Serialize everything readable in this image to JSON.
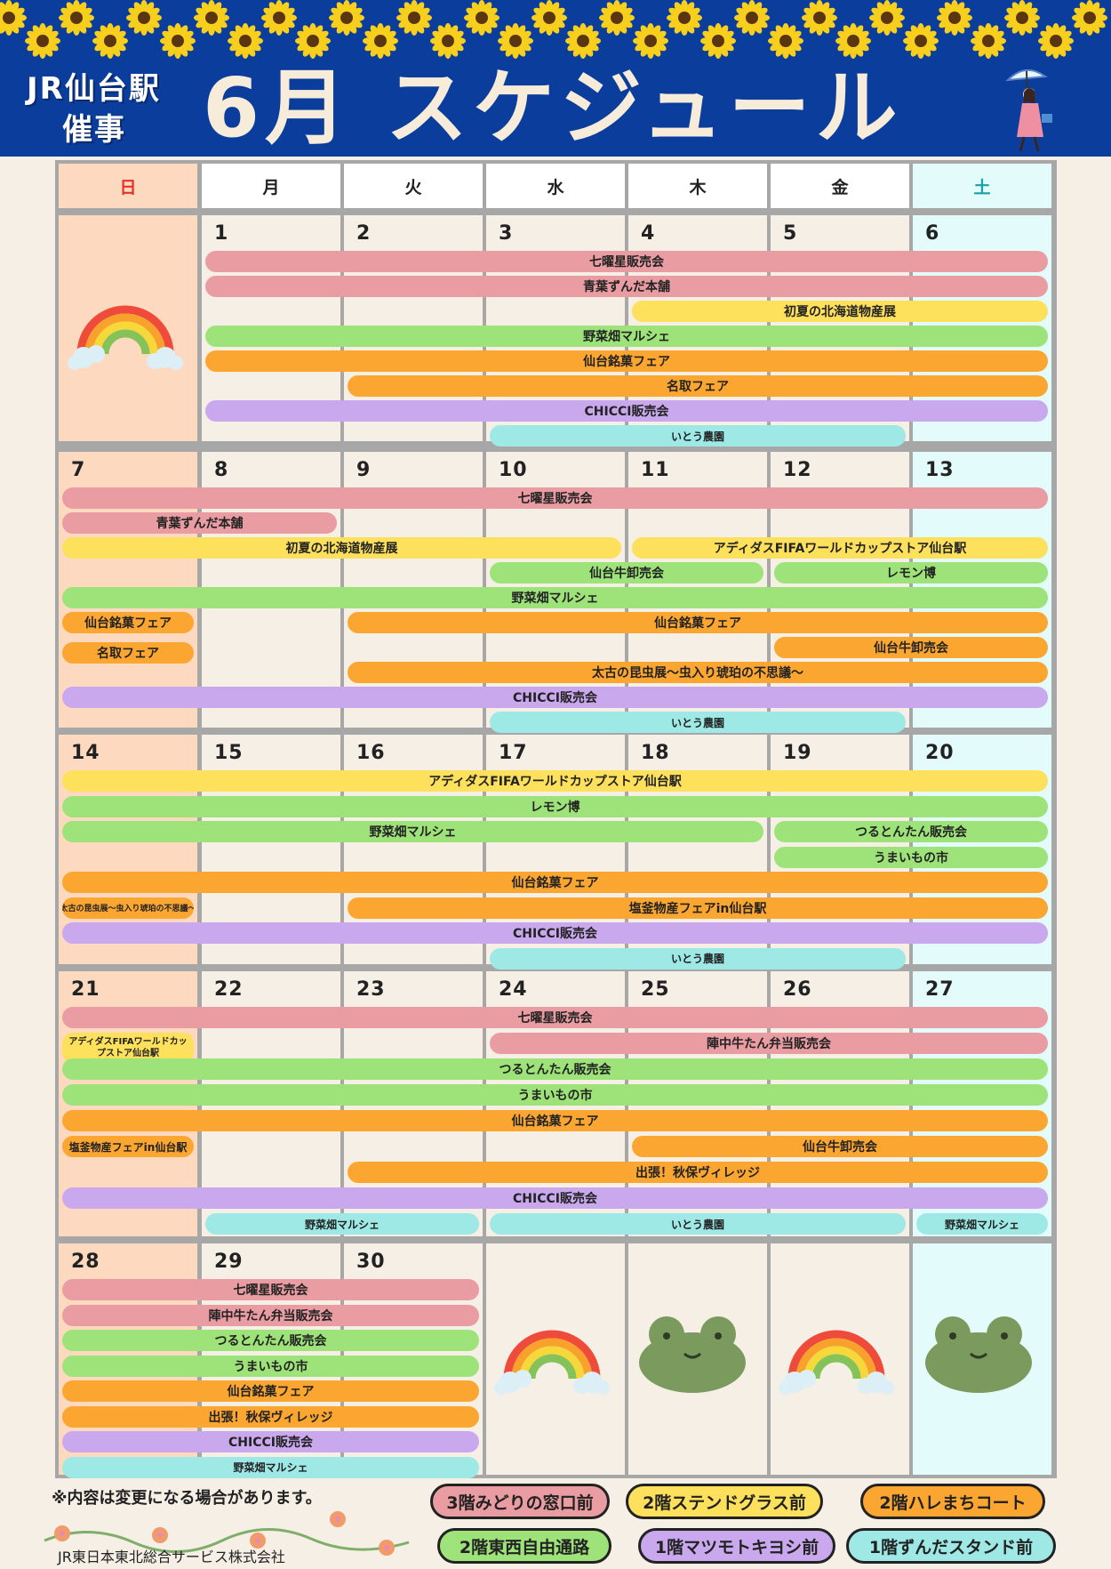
{
  "header": {
    "logo_line1": "JR仙台駅",
    "logo_line2": "催事",
    "title": "6月 スケジュール"
  },
  "weekdays": [
    {
      "label": "日",
      "color": "#e8302a",
      "bg": "#fdd9bf"
    },
    {
      "label": "月",
      "color": "#222222",
      "bg": "#ffffff"
    },
    {
      "label": "火",
      "color": "#222222",
      "bg": "#ffffff"
    },
    {
      "label": "水",
      "color": "#222222",
      "bg": "#ffffff"
    },
    {
      "label": "木",
      "color": "#222222",
      "bg": "#ffffff"
    },
    {
      "label": "金",
      "color": "#222222",
      "bg": "#ffffff"
    },
    {
      "label": "土",
      "color": "#16a3a8",
      "bg": "#e3fbfb"
    }
  ],
  "weeks": [
    {
      "dates": [
        "",
        "1",
        "2",
        "3",
        "4",
        "5",
        "6"
      ]
    },
    {
      "dates": [
        "7",
        "8",
        "9",
        "10",
        "11",
        "12",
        "13"
      ]
    },
    {
      "dates": [
        "14",
        "15",
        "16",
        "17",
        "18",
        "19",
        "20"
      ]
    },
    {
      "dates": [
        "21",
        "22",
        "23",
        "24",
        "25",
        "26",
        "27"
      ]
    },
    {
      "dates": [
        "28",
        "29",
        "30",
        "",
        "",
        "",
        ""
      ]
    }
  ],
  "colors": {
    "pink": "#e99ca2",
    "yellow": "#fde05c",
    "green": "#9ee37a",
    "orange": "#fca632",
    "purple": "#c9a8ee",
    "cyan": "#9ee8e6"
  },
  "events": [
    {
      "week": 0,
      "start": 1,
      "end": 6,
      "row": 0,
      "color": "pink",
      "label": "七曜星販売会"
    },
    {
      "week": 0,
      "start": 1,
      "end": 6,
      "row": 1,
      "color": "pink",
      "label": "青葉ずんだ本舗"
    },
    {
      "week": 0,
      "start": 4,
      "end": 6,
      "row": 2,
      "color": "yellow",
      "label": "初夏の北海道物産展"
    },
    {
      "week": 0,
      "start": 1,
      "end": 6,
      "row": 3,
      "color": "green",
      "label": "野菜畑マルシェ"
    },
    {
      "week": 0,
      "start": 1,
      "end": 6,
      "row": 4,
      "color": "orange",
      "label": "仙台銘菓フェア"
    },
    {
      "week": 0,
      "start": 2,
      "end": 6,
      "row": 5,
      "color": "orange",
      "label": "名取フェア"
    },
    {
      "week": 0,
      "start": 1,
      "end": 6,
      "row": 6,
      "color": "purple",
      "label": "CHICCI販売会"
    },
    {
      "week": 0,
      "start": 3,
      "end": 5,
      "row": 7,
      "color": "cyan",
      "label": "いとう農園",
      "size": "small"
    },
    {
      "week": 1,
      "start": 0,
      "end": 6,
      "row": 0,
      "color": "pink",
      "label": "七曜星販売会"
    },
    {
      "week": 1,
      "start": 0,
      "end": 1,
      "row": 1,
      "color": "pink",
      "label": "青葉ずんだ本舗"
    },
    {
      "week": 1,
      "start": 0,
      "end": 3,
      "row": 2,
      "color": "yellow",
      "label": "初夏の北海道物産展"
    },
    {
      "week": 1,
      "start": 4,
      "end": 6,
      "row": 2,
      "color": "yellow",
      "label": "アディダスFIFAワールドカップストア仙台駅"
    },
    {
      "week": 1,
      "start": 3,
      "end": 4,
      "row": 3,
      "color": "green",
      "label": "仙台牛卸売会"
    },
    {
      "week": 1,
      "start": 5,
      "end": 6,
      "row": 3,
      "color": "green",
      "label": "レモン博"
    },
    {
      "week": 1,
      "start": 0,
      "end": 6,
      "row": 4,
      "color": "green",
      "label": "野菜畑マルシェ"
    },
    {
      "week": 1,
      "start": 0,
      "end": 0,
      "row": 5,
      "color": "orange",
      "label": "仙台銘菓フェア"
    },
    {
      "week": 1,
      "start": 2,
      "end": 6,
      "row": 5,
      "color": "orange",
      "label": "仙台銘菓フェア"
    },
    {
      "week": 1,
      "start": 0,
      "end": 0,
      "row": 6,
      "color": "orange",
      "label": "名取フェア",
      "shift": 6
    },
    {
      "week": 1,
      "start": 5,
      "end": 6,
      "row": 6,
      "color": "orange",
      "label": "仙台牛卸売会"
    },
    {
      "week": 1,
      "start": 2,
      "end": 6,
      "row": 7,
      "color": "orange",
      "label": "太古の昆虫展～虫入り琥珀の不思議～"
    },
    {
      "week": 1,
      "start": 0,
      "end": 6,
      "row": 8,
      "color": "purple",
      "label": "CHICCI販売会"
    },
    {
      "week": 1,
      "start": 3,
      "end": 5,
      "row": 9,
      "color": "cyan",
      "label": "いとう農園",
      "size": "small"
    },
    {
      "week": 2,
      "start": 0,
      "end": 6,
      "row": 0,
      "color": "yellow",
      "label": "アディダスFIFAワールドカップストア仙台駅"
    },
    {
      "week": 2,
      "start": 0,
      "end": 6,
      "row": 1,
      "color": "green",
      "label": "レモン博"
    },
    {
      "week": 2,
      "start": 0,
      "end": 4,
      "row": 2,
      "color": "green",
      "label": "野菜畑マルシェ"
    },
    {
      "week": 2,
      "start": 5,
      "end": 6,
      "row": 2,
      "color": "green",
      "label": "つるとんたん販売会"
    },
    {
      "week": 2,
      "start": 5,
      "end": 6,
      "row": 3,
      "color": "green",
      "label": "うまいもの市"
    },
    {
      "week": 2,
      "start": 0,
      "end": 6,
      "row": 4,
      "color": "orange",
      "label": "仙台銘菓フェア"
    },
    {
      "week": 2,
      "start": 0,
      "end": 0,
      "row": 5,
      "color": "orange",
      "label": "太古の昆虫展～虫入り琥珀の不思議～",
      "size": "tiny"
    },
    {
      "week": 2,
      "start": 2,
      "end": 6,
      "row": 5,
      "color": "orange",
      "label": "塩釜物産フェアin仙台駅"
    },
    {
      "week": 2,
      "start": 0,
      "end": 6,
      "row": 6,
      "color": "purple",
      "label": "CHICCI販売会"
    },
    {
      "week": 2,
      "start": 3,
      "end": 5,
      "row": 7,
      "color": "cyan",
      "label": "いとう農園",
      "size": "small"
    },
    {
      "week": 3,
      "start": 0,
      "end": 6,
      "row": 0,
      "color": "pink",
      "label": "七曜星販売会"
    },
    {
      "week": 3,
      "start": 0,
      "end": 0,
      "row": 1,
      "color": "yellow",
      "label": "アディダスFIFAワールドカップストア仙台駅",
      "size": "tall"
    },
    {
      "week": 3,
      "start": 3,
      "end": 6,
      "row": 1,
      "color": "pink",
      "label": "陣中牛たん弁当販売会"
    },
    {
      "week": 3,
      "start": 0,
      "end": 6,
      "row": 2,
      "color": "green",
      "label": "つるとんたん販売会"
    },
    {
      "week": 3,
      "start": 0,
      "end": 6,
      "row": 3,
      "color": "green",
      "label": "うまいもの市"
    },
    {
      "week": 3,
      "start": 0,
      "end": 6,
      "row": 4,
      "color": "orange",
      "label": "仙台銘菓フェア"
    },
    {
      "week": 3,
      "start": 0,
      "end": 0,
      "row": 5,
      "color": "orange",
      "label": "塩釜物産フェアin仙台駅",
      "size": "small"
    },
    {
      "week": 3,
      "start": 4,
      "end": 6,
      "row": 5,
      "color": "orange",
      "label": "仙台牛卸売会"
    },
    {
      "week": 3,
      "start": 2,
      "end": 6,
      "row": 6,
      "color": "orange",
      "label": "出張！秋保ヴィレッジ"
    },
    {
      "week": 3,
      "start": 0,
      "end": 6,
      "row": 7,
      "color": "purple",
      "label": "CHICCI販売会"
    },
    {
      "week": 3,
      "start": 1,
      "end": 2,
      "row": 8,
      "color": "cyan",
      "label": "野菜畑マルシェ",
      "size": "small"
    },
    {
      "week": 3,
      "start": 3,
      "end": 5,
      "row": 8,
      "color": "cyan",
      "label": "いとう農園",
      "size": "small"
    },
    {
      "week": 3,
      "start": 6,
      "end": 6,
      "row": 8,
      "color": "cyan",
      "label": "野菜畑マルシェ",
      "size": "small"
    },
    {
      "week": 4,
      "start": 0,
      "end": 2,
      "row": 0,
      "color": "pink",
      "label": "七曜星販売会"
    },
    {
      "week": 4,
      "start": 0,
      "end": 2,
      "row": 1,
      "color": "pink",
      "label": "陣中牛たん弁当販売会"
    },
    {
      "week": 4,
      "start": 0,
      "end": 2,
      "row": 2,
      "color": "green",
      "label": "つるとんたん販売会"
    },
    {
      "week": 4,
      "start": 0,
      "end": 2,
      "row": 3,
      "color": "green",
      "label": "うまいもの市"
    },
    {
      "week": 4,
      "start": 0,
      "end": 2,
      "row": 4,
      "color": "orange",
      "label": "仙台銘菓フェア"
    },
    {
      "week": 4,
      "start": 0,
      "end": 2,
      "row": 5,
      "color": "orange",
      "label": "出張！秋保ヴィレッジ"
    },
    {
      "week": 4,
      "start": 0,
      "end": 2,
      "row": 6,
      "color": "purple",
      "label": "CHICCI販売会"
    },
    {
      "week": 4,
      "start": 0,
      "end": 2,
      "row": 7,
      "color": "cyan",
      "label": "野菜畑マルシェ",
      "size": "small"
    }
  ],
  "footer": {
    "note": "※内容は変更になる場合があります。",
    "company": "JR東日本東北総合サービス株式会社",
    "legend": [
      {
        "label": "3階みどりの窓口前",
        "color": "pink"
      },
      {
        "label": "2階ステンドグラス前",
        "color": "yellow"
      },
      {
        "label": "2階ハレまちコート",
        "color": "orange"
      },
      {
        "label": "2階東西自由通路",
        "color": "green"
      },
      {
        "label": "1階マツモトキヨシ前",
        "color": "purple"
      },
      {
        "label": "1階ずんだスタンド前",
        "color": "cyan"
      }
    ]
  }
}
